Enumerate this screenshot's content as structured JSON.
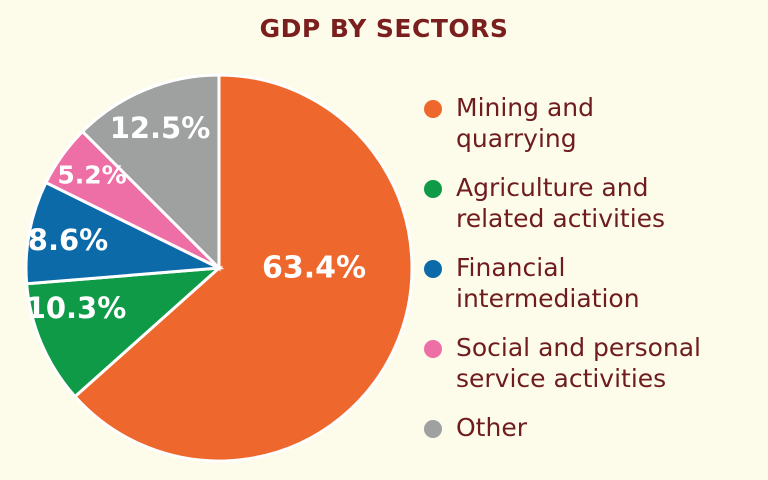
{
  "chart_data": {
    "type": "pie",
    "title": "GDP BY SECTORS",
    "categories": [
      "Mining and quarrying",
      "Agriculture and related activities",
      "Financial intermediation",
      "Social and personal service activities",
      "Other"
    ],
    "values": [
      63.4,
      10.3,
      8.6,
      5.2,
      12.5
    ],
    "labels": [
      "63.4%",
      "10.3%",
      "8.6%",
      "5.2%",
      "12.5%"
    ],
    "colors": [
      "#ee672d",
      "#0f9a48",
      "#0d6aa8",
      "#ee6fa5",
      "#9fa0a0"
    ],
    "legend": "right",
    "start": "top",
    "direction": "clockwise"
  }
}
